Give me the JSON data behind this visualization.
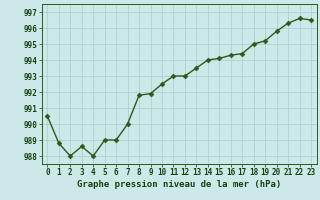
{
  "x": [
    0,
    1,
    2,
    3,
    4,
    5,
    6,
    7,
    8,
    9,
    10,
    11,
    12,
    13,
    14,
    15,
    16,
    17,
    18,
    19,
    20,
    21,
    22,
    23
  ],
  "y": [
    990.5,
    988.8,
    988.0,
    988.6,
    988.0,
    989.0,
    989.0,
    990.0,
    991.8,
    991.9,
    992.5,
    993.0,
    993.0,
    993.5,
    994.0,
    994.1,
    994.3,
    994.4,
    995.0,
    995.2,
    995.8,
    996.3,
    996.6,
    996.5
  ],
  "ylim": [
    987.5,
    997.5
  ],
  "yticks": [
    988,
    989,
    990,
    991,
    992,
    993,
    994,
    995,
    996,
    997
  ],
  "xticks": [
    0,
    1,
    2,
    3,
    4,
    5,
    6,
    7,
    8,
    9,
    10,
    11,
    12,
    13,
    14,
    15,
    16,
    17,
    18,
    19,
    20,
    21,
    22,
    23
  ],
  "xlabel": "Graphe pression niveau de la mer (hPa)",
  "line_color": "#2d5a1b",
  "marker_color": "#2d5a1b",
  "bg_color": "#cce8e8",
  "grid_color": "#aacccc",
  "spine_color": "#2d5a1b",
  "label_color": "#1a4010",
  "xlabel_fontsize": 6.5,
  "tick_fontsize": 5.5,
  "line_width": 1.0,
  "marker_size": 2.5
}
